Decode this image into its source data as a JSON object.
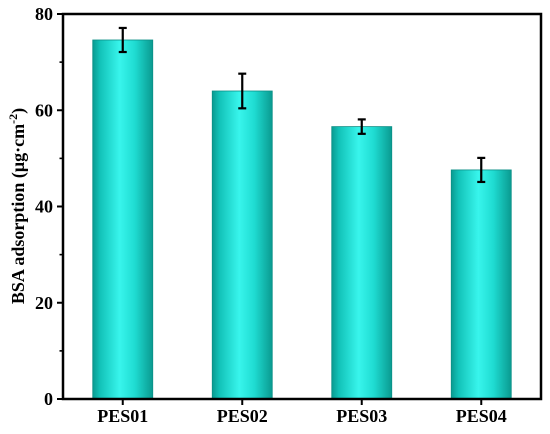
{
  "chart_data": {
    "type": "bar",
    "title": "",
    "xlabel": "",
    "ylabel_main": "BSA adsorption (μg·cm",
    "ylabel_sup": "-2",
    "ylabel_end": ")",
    "categories": [
      "PES01",
      "PES02",
      "PES03",
      "PES04"
    ],
    "values": [
      74.6,
      64.0,
      56.6,
      47.6
    ],
    "errors": [
      2.5,
      3.6,
      1.5,
      2.5
    ],
    "ylim": [
      0,
      80
    ],
    "yticks": [
      0,
      20,
      40,
      60,
      80
    ],
    "bar_color": "#1de5d8",
    "grid": false,
    "legend": "none"
  }
}
